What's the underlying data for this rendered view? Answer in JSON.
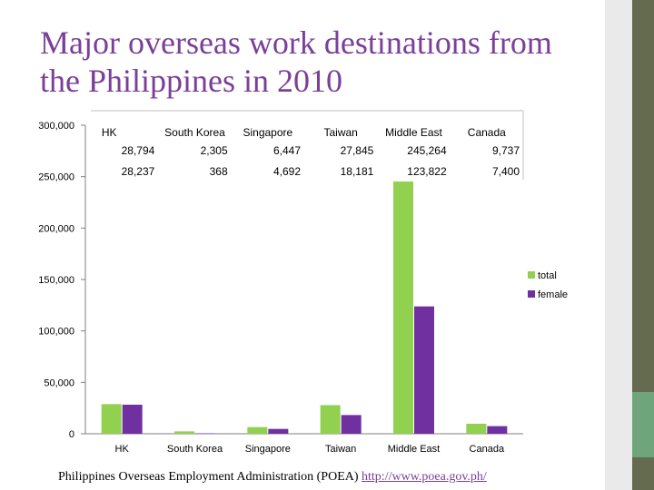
{
  "title": "Major overseas work destinations from the Philippines in 2010",
  "source": {
    "text": "Philippines Overseas Employment Administration (POEA)",
    "link": "http://www.poea.gov.ph/"
  },
  "colors": {
    "total": "#92d050",
    "female": "#7030a0",
    "title": "#7b3f98"
  },
  "chart_data": {
    "type": "bar",
    "title": "",
    "categories": [
      "HK",
      "South Korea",
      "Singapore",
      "Taiwan",
      "Middle East",
      "Canada"
    ],
    "series": [
      {
        "name": "total",
        "values": [
          28794,
          2305,
          6447,
          27845,
          245264,
          9737
        ],
        "labels": [
          "28,794",
          "2,305",
          "6,447",
          "27,845",
          "245,264",
          "9,737"
        ]
      },
      {
        "name": "female",
        "values": [
          28237,
          368,
          4692,
          18181,
          123822,
          7400
        ],
        "labels": [
          "28,237",
          "368",
          "4,692",
          "18,181",
          "123,822",
          "7,400"
        ]
      }
    ],
    "ylim": [
      0,
      300000
    ],
    "yticks": [
      0,
      50000,
      100000,
      150000,
      200000,
      250000,
      300000
    ],
    "ytick_labels": [
      "0",
      "50,000",
      "100,000",
      "150,000",
      "200,000",
      "250,000",
      "300,000"
    ],
    "legend": "right",
    "grid": false,
    "data_table": true
  }
}
